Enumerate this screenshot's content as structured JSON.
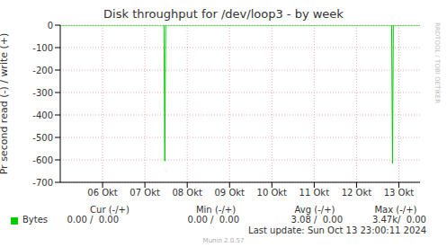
{
  "chart_data": {
    "type": "line",
    "title": "Disk throughput for /dev/loop3 - by week",
    "y_label": "Pr second read (-) / write (+)",
    "x": [
      5.0,
      7.45,
      7.47,
      7.49,
      12.83,
      12.85,
      12.87,
      13.5
    ],
    "series": [
      {
        "name": "Bytes",
        "color": "#00cc00",
        "values": [
          0,
          0,
          -605,
          0,
          0,
          -615,
          0,
          0
        ]
      }
    ],
    "xlim": [
      5.0,
      13.5
    ],
    "xticks": [
      {
        "value": 6,
        "label": "06 Okt"
      },
      {
        "value": 7,
        "label": "07 Okt"
      },
      {
        "value": 8,
        "label": "08 Okt"
      },
      {
        "value": 9,
        "label": "09 Okt"
      },
      {
        "value": 10,
        "label": "10 Okt"
      },
      {
        "value": 11,
        "label": "11 Okt"
      },
      {
        "value": 12,
        "label": "12 Okt"
      },
      {
        "value": 13,
        "label": "13 Okt"
      }
    ],
    "ylim": [
      -700,
      0
    ],
    "yticks": [
      -700,
      -600,
      -500,
      -400,
      -300,
      -200,
      -100,
      0
    ],
    "grid": true,
    "legend_table": {
      "headers": [
        "Cur (-/+)",
        "Min (-/+)",
        "Avg (-/+)",
        "Max (-/+)"
      ],
      "rows": [
        {
          "name": "Bytes",
          "values": [
            "0.00 /  0.00",
            "0.00 /  0.00",
            "3.08 /  0.00",
            "3.47k/  0.00"
          ]
        }
      ]
    },
    "footer": "Last update: Sun Oct 13 23:00:11 2024",
    "credit": "Munin 2.0.57",
    "side_text": "RRDTOOL / TOBI OETIKER"
  }
}
